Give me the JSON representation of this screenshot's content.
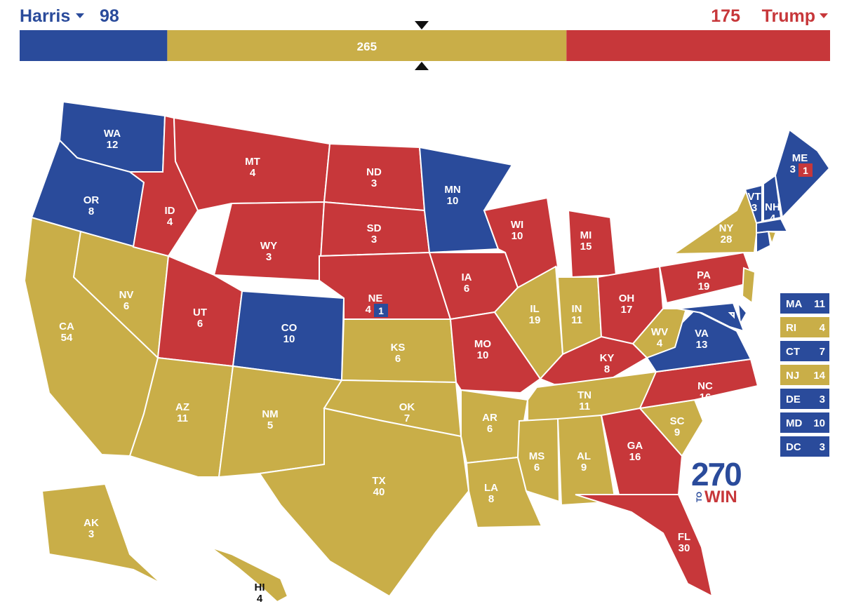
{
  "header": {
    "left_name": "Harris",
    "left_total": 98,
    "left_color": "#2a4b9b",
    "toss_total": 265,
    "toss_color": "#c9ae48",
    "right_total": 175,
    "right_name": "Trump",
    "right_color": "#c7373a"
  },
  "logo": {
    "number": "270",
    "small": "TO",
    "word": "WIN"
  },
  "states": [
    {
      "abbr": "WA",
      "ev": 12,
      "color": "#2a4b9b"
    },
    {
      "abbr": "OR",
      "ev": 8,
      "color": "#2a4b9b"
    },
    {
      "abbr": "CA",
      "ev": 54,
      "color": "#c9ae48"
    },
    {
      "abbr": "NV",
      "ev": 6,
      "color": "#c9ae48"
    },
    {
      "abbr": "ID",
      "ev": 4,
      "color": "#c7373a"
    },
    {
      "abbr": "MT",
      "ev": 4,
      "color": "#c7373a"
    },
    {
      "abbr": "WY",
      "ev": 3,
      "color": "#c7373a"
    },
    {
      "abbr": "UT",
      "ev": 6,
      "color": "#c7373a"
    },
    {
      "abbr": "AZ",
      "ev": 11,
      "color": "#c9ae48"
    },
    {
      "abbr": "CO",
      "ev": 10,
      "color": "#2a4b9b"
    },
    {
      "abbr": "NM",
      "ev": 5,
      "color": "#c9ae48"
    },
    {
      "abbr": "ND",
      "ev": 3,
      "color": "#c7373a"
    },
    {
      "abbr": "SD",
      "ev": 3,
      "color": "#c7373a"
    },
    {
      "abbr": "NE",
      "ev": 4,
      "color": "#c7373a",
      "split": {
        "ev": 1,
        "color": "#2a4b9b"
      }
    },
    {
      "abbr": "KS",
      "ev": 6,
      "color": "#c9ae48"
    },
    {
      "abbr": "OK",
      "ev": 7,
      "color": "#c9ae48"
    },
    {
      "abbr": "TX",
      "ev": 40,
      "color": "#c9ae48"
    },
    {
      "abbr": "MN",
      "ev": 10,
      "color": "#2a4b9b"
    },
    {
      "abbr": "IA",
      "ev": 6,
      "color": "#c7373a"
    },
    {
      "abbr": "MO",
      "ev": 10,
      "color": "#c7373a"
    },
    {
      "abbr": "AR",
      "ev": 6,
      "color": "#c9ae48"
    },
    {
      "abbr": "LA",
      "ev": 8,
      "color": "#c9ae48"
    },
    {
      "abbr": "WI",
      "ev": 10,
      "color": "#c7373a"
    },
    {
      "abbr": "IL",
      "ev": 19,
      "color": "#c9ae48"
    },
    {
      "abbr": "MI",
      "ev": 15,
      "color": "#c7373a"
    },
    {
      "abbr": "IN",
      "ev": 11,
      "color": "#c9ae48"
    },
    {
      "abbr": "OH",
      "ev": 17,
      "color": "#c7373a"
    },
    {
      "abbr": "KY",
      "ev": 8,
      "color": "#c7373a"
    },
    {
      "abbr": "TN",
      "ev": 11,
      "color": "#c9ae48"
    },
    {
      "abbr": "MS",
      "ev": 6,
      "color": "#c9ae48"
    },
    {
      "abbr": "AL",
      "ev": 9,
      "color": "#c9ae48"
    },
    {
      "abbr": "GA",
      "ev": 16,
      "color": "#c7373a"
    },
    {
      "abbr": "FL",
      "ev": 30,
      "color": "#c7373a"
    },
    {
      "abbr": "SC",
      "ev": 9,
      "color": "#c9ae48"
    },
    {
      "abbr": "NC",
      "ev": 16,
      "color": "#c7373a"
    },
    {
      "abbr": "VA",
      "ev": 13,
      "color": "#2a4b9b"
    },
    {
      "abbr": "WV",
      "ev": 4,
      "color": "#c9ae48"
    },
    {
      "abbr": "PA",
      "ev": 19,
      "color": "#c7373a"
    },
    {
      "abbr": "NY",
      "ev": 28,
      "color": "#c9ae48"
    },
    {
      "abbr": "VT",
      "ev": 3,
      "color": "#2a4b9b"
    },
    {
      "abbr": "NH",
      "ev": 4,
      "color": "#2a4b9b"
    },
    {
      "abbr": "ME",
      "ev": 3,
      "color": "#2a4b9b",
      "split": {
        "ev": 1,
        "color": "#c7373a"
      }
    },
    {
      "abbr": "AK",
      "ev": 3,
      "color": "#c9ae48"
    },
    {
      "abbr": "HI",
      "ev": 4,
      "color": "#c9ae48"
    },
    {
      "abbr": "MA",
      "ev": 11,
      "color": "#2a4b9b"
    },
    {
      "abbr": "RI",
      "ev": 4,
      "color": "#c9ae48"
    },
    {
      "abbr": "CT",
      "ev": 7,
      "color": "#2a4b9b"
    },
    {
      "abbr": "NJ",
      "ev": 14,
      "color": "#c9ae48"
    },
    {
      "abbr": "DE",
      "ev": 3,
      "color": "#2a4b9b"
    },
    {
      "abbr": "MD",
      "ev": 10,
      "color": "#2a4b9b"
    },
    {
      "abbr": "DC",
      "ev": 3,
      "color": "#2a4b9b"
    }
  ]
}
